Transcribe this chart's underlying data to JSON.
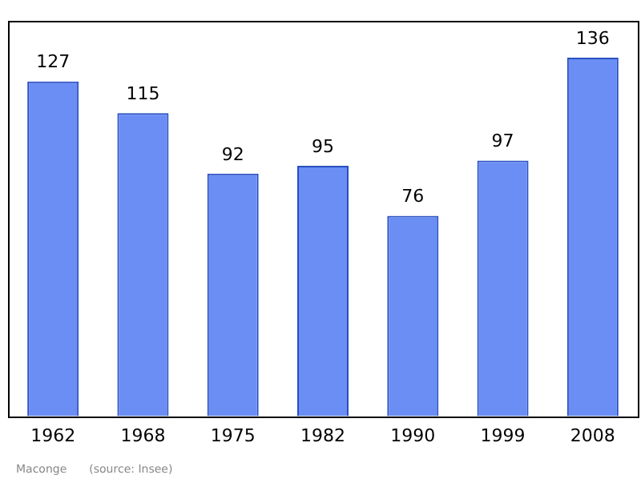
{
  "chart_data": {
    "type": "bar",
    "categories": [
      "1962",
      "1968",
      "1975",
      "1982",
      "1990",
      "1999",
      "2008"
    ],
    "values": [
      127,
      115,
      92,
      95,
      76,
      97,
      136
    ],
    "color": "#6b8ef5",
    "ylim": [
      0,
      150
    ],
    "tick_labels": "x",
    "data_labels": true,
    "grid": false,
    "legend": false,
    "annotations": [
      "Maconge",
      "(source: Insee)"
    ]
  }
}
